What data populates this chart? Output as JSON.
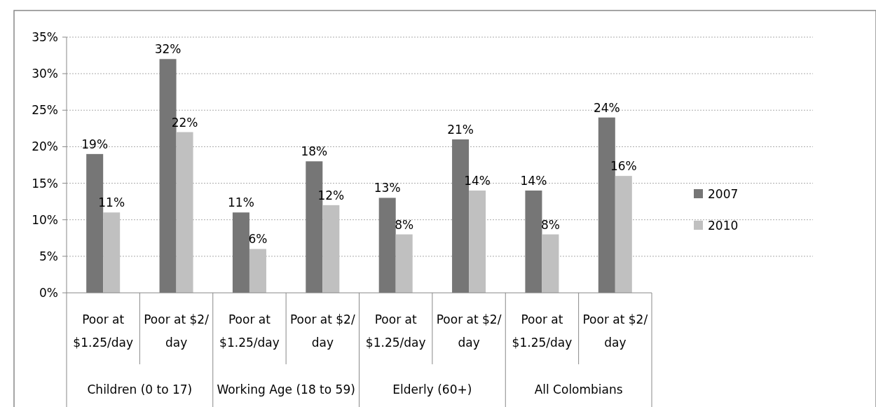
{
  "chart_data": {
    "type": "bar",
    "categories": [
      "Poor at\n$1.25/day",
      "Poor at $2/\nday",
      "Poor at\n$1.25/day",
      "Poor at $2/\nday",
      "Poor at\n$1.25/day",
      "Poor at $2/\nday",
      "Poor at\n$1.25/day",
      "Poor at $2/\nday"
    ],
    "annotations": [
      "Children (0 to 17)",
      "Working Age (18 to 59)",
      "Elderly (60+)",
      "All Colombians"
    ],
    "series": [
      {
        "name": "2007",
        "color": "#767676",
        "values": [
          19,
          32,
          11,
          18,
          13,
          21,
          14,
          24
        ]
      },
      {
        "name": "2010",
        "color": "#c0c0c0",
        "values": [
          11,
          22,
          6,
          12,
          8,
          14,
          8,
          16
        ]
      }
    ],
    "ylim": [
      0,
      35
    ],
    "yticks": [
      {
        "value": 0,
        "label": "0%"
      },
      {
        "value": 5,
        "label": "5%"
      },
      {
        "value": 10,
        "label": "10%"
      },
      {
        "value": 15,
        "label": "15%"
      },
      {
        "value": 20,
        "label": "20%"
      },
      {
        "value": 25,
        "label": "25%"
      },
      {
        "value": 30,
        "label": "30%"
      },
      {
        "value": 35,
        "label": "35%"
      }
    ],
    "value_labels": [
      [
        "19%",
        "32%",
        "11%",
        "18%",
        "13%",
        "21%",
        "14%",
        "24%"
      ],
      [
        "11%",
        "22%",
        "6%",
        "12%",
        "8%",
        "14%",
        "8%",
        "16%"
      ]
    ],
    "grid": "y",
    "legend": "right"
  }
}
